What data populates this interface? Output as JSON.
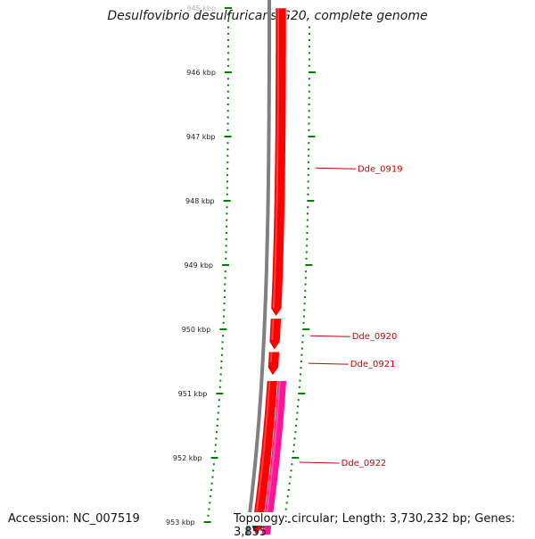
{
  "title": "Desulfovibrio desulfuricans G20, complete genome",
  "footer": {
    "accession_label": "Accession:",
    "accession": "NC_007519",
    "topology_label": "Topology:",
    "topology": "circular; Length: 3,730,232 bp; Genes: 3,855"
  },
  "ruler": {
    "labels": [
      "945 kbp",
      "946 kbp",
      "947 kbp",
      "948 kbp",
      "949 kbp",
      "950 kbp",
      "951 kbp",
      "952 kbp",
      "953 kbp"
    ],
    "first_kbp": 945,
    "last_kbp": 953
  },
  "genes": [
    {
      "name": "Dde_0919",
      "strand": "reverse",
      "color": "#ff0000",
      "start_kbp": 945.0,
      "end_kbp": 949.8
    },
    {
      "name": "Dde_0920",
      "strand": "reverse",
      "color": "#ff0000",
      "start_kbp": 949.83,
      "end_kbp": 950.32
    },
    {
      "name": "Dde_0921",
      "strand": "reverse",
      "color": "#ff0000",
      "start_kbp": 950.35,
      "end_kbp": 950.72
    },
    {
      "name": "Dde_0922",
      "strand": "reverse",
      "color": "#ff0000",
      "start_kbp": 950.8,
      "end_kbp": 953.2
    },
    {
      "name": "",
      "strand": "forward",
      "color": "#ff1493",
      "start_kbp": 950.8,
      "end_kbp": 953.2
    }
  ],
  "colors": {
    "backbone": "#808080",
    "ticks": "#008000",
    "gene_label": "#cc0000"
  }
}
